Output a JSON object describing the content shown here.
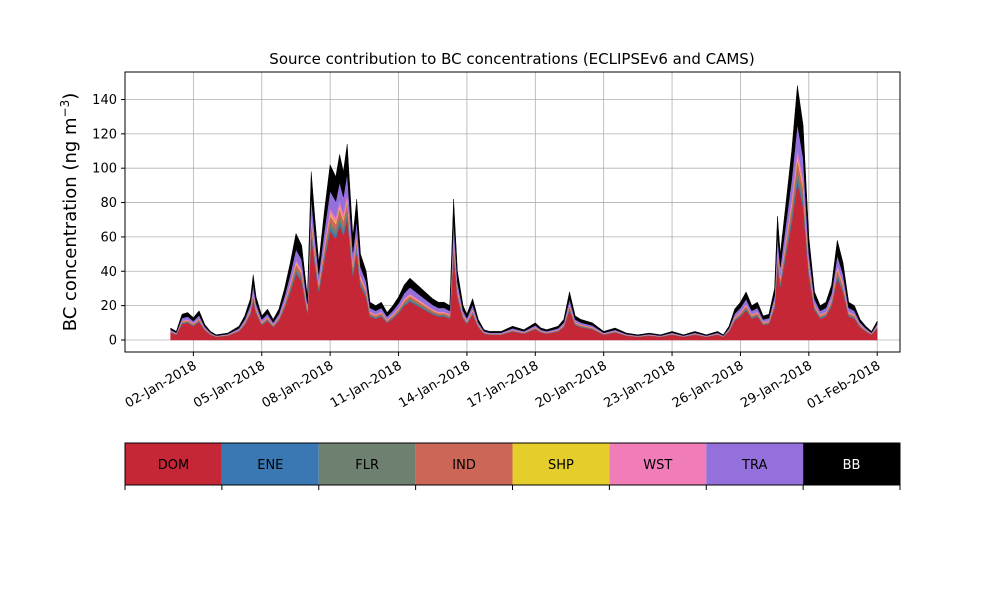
{
  "chart_data": {
    "type": "area",
    "stacked": true,
    "title": "Source contribution to BC concentrations (ECLIPSEv6 and CAMS)",
    "ylabel_main": "BC concentration (ng m",
    "ylabel_sup": "−3",
    "ylabel_close": ")",
    "xlabel": "",
    "x_start": "2018-01-01",
    "x_end": "2018-02-01",
    "xlim": [
      "2017-12-30",
      "2018-02-02"
    ],
    "ylim": [
      -7,
      156
    ],
    "grid": true,
    "x_ticks": [
      "02-Jan-2018",
      "05-Jan-2018",
      "08-Jan-2018",
      "11-Jan-2018",
      "14-Jan-2018",
      "17-Jan-2018",
      "20-Jan-2018",
      "23-Jan-2018",
      "26-Jan-2018",
      "29-Jan-2018",
      "01-Feb-2018"
    ],
    "x_tick_dates": [
      "2018-01-02",
      "2018-01-05",
      "2018-01-08",
      "2018-01-11",
      "2018-01-14",
      "2018-01-17",
      "2018-01-20",
      "2018-01-23",
      "2018-01-26",
      "2018-01-29",
      "2018-02-01"
    ],
    "y_ticks": [
      0,
      20,
      40,
      60,
      80,
      100,
      120,
      140
    ],
    "total_profile": [
      [
        "2018-01-01 00:00",
        7
      ],
      [
        "2018-01-01 06:00",
        5
      ],
      [
        "2018-01-01 12:00",
        15
      ],
      [
        "2018-01-01 18:00",
        16
      ],
      [
        "2018-01-02 00:00",
        13
      ],
      [
        "2018-01-02 06:00",
        17
      ],
      [
        "2018-01-02 12:00",
        9
      ],
      [
        "2018-01-02 18:00",
        5
      ],
      [
        "2018-01-03 00:00",
        3
      ],
      [
        "2018-01-03 12:00",
        4
      ],
      [
        "2018-01-04 00:00",
        8
      ],
      [
        "2018-01-04 06:00",
        14
      ],
      [
        "2018-01-04 12:00",
        24
      ],
      [
        "2018-01-04 15:00",
        38
      ],
      [
        "2018-01-04 18:00",
        25
      ],
      [
        "2018-01-05 00:00",
        14
      ],
      [
        "2018-01-05 06:00",
        18
      ],
      [
        "2018-01-05 12:00",
        12
      ],
      [
        "2018-01-05 18:00",
        18
      ],
      [
        "2018-01-06 00:00",
        30
      ],
      [
        "2018-01-06 06:00",
        45
      ],
      [
        "2018-01-06 12:00",
        62
      ],
      [
        "2018-01-06 18:00",
        55
      ],
      [
        "2018-01-07 00:00",
        25
      ],
      [
        "2018-01-07 04:00",
        98
      ],
      [
        "2018-01-07 08:00",
        70
      ],
      [
        "2018-01-07 12:00",
        45
      ],
      [
        "2018-01-07 18:00",
        75
      ],
      [
        "2018-01-08 00:00",
        102
      ],
      [
        "2018-01-08 06:00",
        95
      ],
      [
        "2018-01-08 10:00",
        108
      ],
      [
        "2018-01-08 14:00",
        98
      ],
      [
        "2018-01-08 18:00",
        114
      ],
      [
        "2018-01-09 00:00",
        60
      ],
      [
        "2018-01-09 04:00",
        82
      ],
      [
        "2018-01-09 08:00",
        50
      ],
      [
        "2018-01-09 14:00",
        40
      ],
      [
        "2018-01-09 18:00",
        22
      ],
      [
        "2018-01-10 00:00",
        20
      ],
      [
        "2018-01-10 06:00",
        22
      ],
      [
        "2018-01-10 12:00",
        16
      ],
      [
        "2018-01-10 18:00",
        20
      ],
      [
        "2018-01-11 00:00",
        25
      ],
      [
        "2018-01-11 06:00",
        32
      ],
      [
        "2018-01-11 12:00",
        36
      ],
      [
        "2018-01-11 18:00",
        33
      ],
      [
        "2018-01-12 00:00",
        30
      ],
      [
        "2018-01-12 06:00",
        27
      ],
      [
        "2018-01-12 12:00",
        24
      ],
      [
        "2018-01-12 18:00",
        22
      ],
      [
        "2018-01-13 00:00",
        22
      ],
      [
        "2018-01-13 06:00",
        20
      ],
      [
        "2018-01-13 10:00",
        82
      ],
      [
        "2018-01-13 14:00",
        40
      ],
      [
        "2018-01-13 20:00",
        20
      ],
      [
        "2018-01-14 00:00",
        15
      ],
      [
        "2018-01-14 06:00",
        24
      ],
      [
        "2018-01-14 12:00",
        12
      ],
      [
        "2018-01-14 18:00",
        6
      ],
      [
        "2018-01-15 00:00",
        5
      ],
      [
        "2018-01-15 12:00",
        5
      ],
      [
        "2018-01-16 00:00",
        8
      ],
      [
        "2018-01-16 12:00",
        6
      ],
      [
        "2018-01-17 00:00",
        10
      ],
      [
        "2018-01-17 06:00",
        7
      ],
      [
        "2018-01-17 12:00",
        6
      ],
      [
        "2018-01-18 00:00",
        8
      ],
      [
        "2018-01-18 06:00",
        12
      ],
      [
        "2018-01-18 12:00",
        28
      ],
      [
        "2018-01-18 18:00",
        14
      ],
      [
        "2018-01-19 00:00",
        12
      ],
      [
        "2018-01-19 12:00",
        10
      ],
      [
        "2018-01-20 00:00",
        5
      ],
      [
        "2018-01-20 12:00",
        7
      ],
      [
        "2018-01-21 00:00",
        4
      ],
      [
        "2018-01-21 12:00",
        3
      ],
      [
        "2018-01-22 00:00",
        4
      ],
      [
        "2018-01-22 12:00",
        3
      ],
      [
        "2018-01-23 00:00",
        5
      ],
      [
        "2018-01-23 12:00",
        3
      ],
      [
        "2018-01-24 00:00",
        5
      ],
      [
        "2018-01-24 12:00",
        3
      ],
      [
        "2018-01-25 00:00",
        5
      ],
      [
        "2018-01-25 06:00",
        3
      ],
      [
        "2018-01-25 12:00",
        8
      ],
      [
        "2018-01-25 18:00",
        18
      ],
      [
        "2018-01-26 00:00",
        22
      ],
      [
        "2018-01-26 06:00",
        28
      ],
      [
        "2018-01-26 12:00",
        20
      ],
      [
        "2018-01-26 18:00",
        22
      ],
      [
        "2018-01-27 00:00",
        14
      ],
      [
        "2018-01-27 06:00",
        15
      ],
      [
        "2018-01-27 12:00",
        30
      ],
      [
        "2018-01-27 15:00",
        72
      ],
      [
        "2018-01-27 18:00",
        50
      ],
      [
        "2018-01-28 00:00",
        80
      ],
      [
        "2018-01-28 06:00",
        110
      ],
      [
        "2018-01-28 12:00",
        148
      ],
      [
        "2018-01-28 18:00",
        125
      ],
      [
        "2018-01-29 00:00",
        60
      ],
      [
        "2018-01-29 06:00",
        28
      ],
      [
        "2018-01-29 12:00",
        20
      ],
      [
        "2018-01-29 18:00",
        22
      ],
      [
        "2018-01-30 00:00",
        32
      ],
      [
        "2018-01-30 06:00",
        58
      ],
      [
        "2018-01-30 12:00",
        45
      ],
      [
        "2018-01-30 18:00",
        22
      ],
      [
        "2018-01-31 00:00",
        20
      ],
      [
        "2018-01-31 06:00",
        12
      ],
      [
        "2018-01-31 12:00",
        8
      ],
      [
        "2018-01-31 18:00",
        5
      ],
      [
        "2018-02-01 00:00",
        11
      ]
    ],
    "legend": {
      "placement": "bottom-colorbar",
      "entries": [
        {
          "name": "DOM",
          "color": "#c52737",
          "text_color": "#000000",
          "share": 0.62
        },
        {
          "name": "ENE",
          "color": "#3978b2",
          "text_color": "#000000",
          "share": 0.02
        },
        {
          "name": "FLR",
          "color": "#6e8070",
          "text_color": "#000000",
          "share": 0.03
        },
        {
          "name": "IND",
          "color": "#cc6657",
          "text_color": "#000000",
          "share": 0.04
        },
        {
          "name": "SHP",
          "color": "#e5ce2c",
          "text_color": "#000000",
          "share": 0.01
        },
        {
          "name": "WST",
          "color": "#f07db8",
          "text_color": "#000000",
          "share": 0.03
        },
        {
          "name": "TRA",
          "color": "#9370db",
          "text_color": "#000000",
          "share": 0.1
        },
        {
          "name": "BB",
          "color": "#000000",
          "text_color": "#ffffff",
          "share": 0.15
        }
      ]
    }
  }
}
